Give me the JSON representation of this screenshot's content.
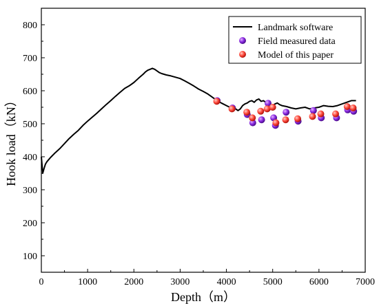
{
  "chart_data": {
    "type": "line",
    "title": "",
    "xlabel": "Depth（m）",
    "ylabel": "Hook load（kN）",
    "xlim": [
      0,
      7000
    ],
    "ylim": [
      50,
      850
    ],
    "xticks": [
      0,
      1000,
      2000,
      3000,
      4000,
      5000,
      6000,
      7000
    ],
    "yticks": [
      100,
      200,
      300,
      400,
      500,
      600,
      700,
      800
    ],
    "grid": false,
    "legend_position": "top-right",
    "colors": {
      "line": "#000000",
      "field_marker": "#8a2be2",
      "model_marker": "#ff4a3d"
    },
    "series": [
      {
        "name": "Landmark software",
        "type": "line",
        "x": [
          0,
          30,
          60,
          90,
          120,
          150,
          200,
          300,
          400,
          500,
          600,
          700,
          800,
          900,
          1000,
          1100,
          1200,
          1300,
          1400,
          1500,
          1600,
          1700,
          1800,
          1900,
          2000,
          2100,
          2200,
          2250,
          2300,
          2350,
          2400,
          2450,
          2500,
          2550,
          2600,
          2700,
          2800,
          2900,
          3000,
          3100,
          3200,
          3300,
          3400,
          3500,
          3600,
          3700,
          3800,
          3900,
          4000,
          4100,
          4200,
          4250,
          4300,
          4350,
          4400,
          4450,
          4500,
          4550,
          4600,
          4650,
          4700,
          4750,
          4800,
          4850,
          4900,
          4950,
          5000,
          5050,
          5100,
          5150,
          5200,
          5300,
          5400,
          5500,
          5600,
          5700,
          5800,
          5900,
          6000,
          6100,
          6200,
          6300,
          6400,
          6500,
          6600,
          6700,
          6800
        ],
        "y": [
          400,
          350,
          365,
          378,
          385,
          390,
          398,
          412,
          425,
          440,
          455,
          468,
          480,
          495,
          508,
          520,
          532,
          545,
          558,
          570,
          583,
          595,
          607,
          615,
          625,
          638,
          650,
          657,
          662,
          665,
          668,
          665,
          660,
          655,
          652,
          648,
          645,
          641,
          637,
          630,
          622,
          614,
          605,
          598,
          590,
          580,
          570,
          562,
          555,
          548,
          545,
          540,
          545,
          555,
          560,
          563,
          568,
          570,
          565,
          572,
          575,
          568,
          570,
          565,
          560,
          555,
          555,
          560,
          563,
          558,
          555,
          552,
          548,
          545,
          548,
          550,
          545,
          548,
          550,
          555,
          553,
          552,
          555,
          560,
          565,
          570,
          570
        ]
      },
      {
        "name": "Field measured data",
        "type": "scatter",
        "x": [
          3800,
          4130,
          4450,
          4570,
          4760,
          4900,
          5020,
          5060,
          5290,
          5550,
          5880,
          6050,
          6380,
          6620,
          6750
        ],
        "y": [
          570,
          548,
          528,
          503,
          512,
          562,
          518,
          495,
          535,
          508,
          540,
          518,
          518,
          542,
          538
        ]
      },
      {
        "name": "Model of this paper",
        "type": "scatter",
        "x": [
          3790,
          4120,
          4440,
          4560,
          4740,
          4880,
          5000,
          5070,
          5280,
          5540,
          5860,
          6040,
          6360,
          6610,
          6740
        ],
        "y": [
          568,
          545,
          535,
          518,
          538,
          545,
          550,
          503,
          512,
          515,
          522,
          530,
          530,
          552,
          548
        ]
      }
    ]
  }
}
